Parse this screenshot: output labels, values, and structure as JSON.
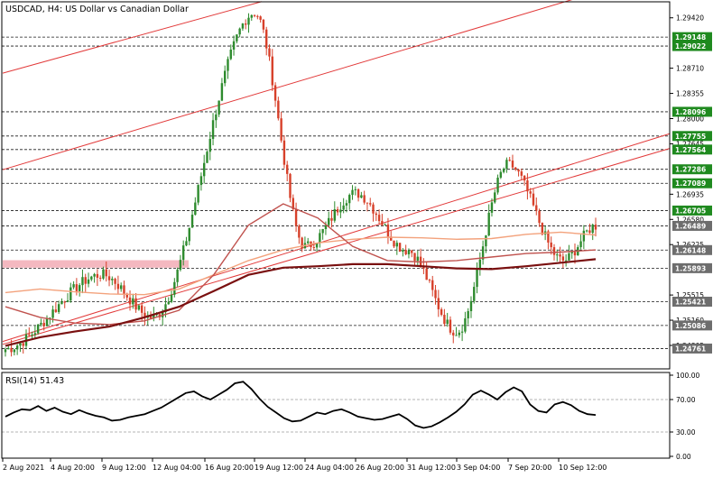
{
  "window": {
    "title": "USDCAD, H4:  US Dollar vs Canadian Dollar",
    "symbol": "USDCAD",
    "timeframe": "H4"
  },
  "colors": {
    "background": "#ffffff",
    "frame": "#000000",
    "candle_up": "#2e8b2e",
    "candle_down": "#d7402a",
    "level_line": "#1a1a1a",
    "label_green": "#1f8a1f",
    "label_gray": "#6d6d6d",
    "channel": "#e23a3a",
    "ma_fast": "#f3a27c",
    "ma_mid": "#c0524e",
    "ma_slow": "#7a1010",
    "zone": "#f4b8c0",
    "rsi_line": "#000000"
  },
  "chart_data": [
    {
      "type": "candlestick",
      "title": "USDCAD, H4:  US Dollar vs Canadian Dollar",
      "x_tick_labels": [
        "2 Aug 2021",
        "4 Aug 20:00",
        "9 Aug 12:00",
        "12 Aug 04:00",
        "16 Aug 20:00",
        "19 Aug 12:00",
        "24 Aug 04:00",
        "26 Aug 20:00",
        "31 Aug 12:00",
        "3 Sep 04:00",
        "7 Sep 20:00",
        "10 Sep 12:00"
      ],
      "y_tick_labels": [
        "1.29420",
        "1.28710",
        "1.28355",
        "1.28000",
        "1.27645",
        "1.26935",
        "1.26580",
        "1.26225",
        "1.25515",
        "1.25160",
        "1.24805"
      ],
      "ylim": [
        1.245,
        1.2962
      ],
      "price_levels": [
        {
          "value": "1.29148",
          "style": "green"
        },
        {
          "value": "1.29022",
          "style": "green"
        },
        {
          "value": "1.28096",
          "style": "green"
        },
        {
          "value": "1.27755",
          "style": "green"
        },
        {
          "value": "1.27564",
          "style": "green"
        },
        {
          "value": "1.27286",
          "style": "green"
        },
        {
          "value": "1.27089",
          "style": "green"
        },
        {
          "value": "1.26705",
          "style": "green"
        },
        {
          "value": "1.26489",
          "style": "gray"
        },
        {
          "value": "1.26148",
          "style": "gray"
        },
        {
          "value": "1.25893",
          "style": "gray"
        },
        {
          "value": "1.25421",
          "style": "gray"
        },
        {
          "value": "1.25086",
          "style": "gray"
        },
        {
          "value": "1.24761",
          "style": "gray"
        }
      ],
      "key_points": [
        {
          "time": "2 Aug 2021",
          "price": 1.2475
        },
        {
          "time": "9 Aug 12:00",
          "price": 1.258
        },
        {
          "time": "12 Aug 04:00",
          "price": 1.252
        },
        {
          "time": "19 Aug 12:00",
          "price": 1.2949
        },
        {
          "time": "24 Aug 04:00",
          "price": 1.262
        },
        {
          "time": "26 Aug 20:00",
          "price": 1.2695
        },
        {
          "time": "31 Aug 12:00",
          "price": 1.2615
        },
        {
          "time": "3 Sep 04:00",
          "price": 1.25
        },
        {
          "time": "7 Sep 20:00",
          "price": 1.2735
        },
        {
          "time": "10 Sep 12:00",
          "price": 1.26
        },
        {
          "time": "10 Sep 12:00",
          "price": 1.2649
        }
      ],
      "moving_averages": [
        {
          "color": "ma_fast",
          "points": [
            1.2555,
            1.256,
            1.2556,
            1.2553,
            1.2552,
            1.256,
            1.258,
            1.26,
            1.2615,
            1.2625,
            1.263,
            1.2633,
            1.2632,
            1.263,
            1.2631,
            1.2637,
            1.264,
            1.2636
          ]
        },
        {
          "color": "ma_mid",
          "points": [
            1.2535,
            1.252,
            1.2512,
            1.251,
            1.2515,
            1.253,
            1.258,
            1.265,
            1.268,
            1.266,
            1.262,
            1.26,
            1.2598,
            1.26,
            1.2605,
            1.261,
            1.2612,
            1.2615
          ]
        },
        {
          "color": "ma_slow",
          "points": [
            1.248,
            1.2492,
            1.25,
            1.2507,
            1.252,
            1.2535,
            1.2557,
            1.258,
            1.259,
            1.2592,
            1.2595,
            1.2595,
            1.2592,
            1.2589,
            1.2588,
            1.2592,
            1.2597,
            1.2602
          ]
        }
      ],
      "channel_lines": [
        {
          "from": [
            "2 Aug 2021",
            1.2864
          ],
          "to": [
            "19 Aug 12:00",
            1.2962
          ]
        },
        {
          "from": [
            "2 Aug 2021",
            1.2728
          ],
          "to": [
            "10 Sep 12:00",
            1.2962
          ]
        },
        {
          "from": [
            "2 Aug 2021",
            1.2486
          ],
          "to": [
            "10 Sep 12:00",
            1.273
          ]
        },
        {
          "from": [
            "2 Aug 2021",
            1.2482
          ],
          "to": [
            "10 Sep 12:00",
            1.2712
          ]
        }
      ],
      "zones": [
        {
          "from_time": "2 Aug 2021",
          "to_time": "16 Aug 20:00",
          "low": 1.259,
          "high": 1.2598
        }
      ]
    },
    {
      "type": "line",
      "title": "RSI(14) 51.43",
      "name": "RSI(14)",
      "last_value": "51.43",
      "y_tick_labels": [
        "100.00",
        "70.00",
        "30.00",
        "0.00"
      ],
      "ylim": [
        0,
        100
      ],
      "levels": [
        70,
        30
      ],
      "values": [
        49,
        54,
        58,
        57,
        62,
        56,
        60,
        55,
        52,
        57,
        53,
        50,
        48,
        44,
        45,
        48,
        50,
        52,
        56,
        60,
        66,
        72,
        78,
        80,
        74,
        70,
        76,
        82,
        90,
        92,
        83,
        71,
        61,
        54,
        47,
        43,
        44,
        49,
        54,
        52,
        56,
        58,
        54,
        49,
        47,
        45,
        46,
        49,
        52,
        46,
        38,
        35,
        37,
        42,
        48,
        55,
        64,
        76,
        81,
        76,
        70,
        79,
        85,
        80,
        64,
        56,
        54,
        64,
        67,
        63,
        56,
        52,
        51
      ]
    }
  ]
}
